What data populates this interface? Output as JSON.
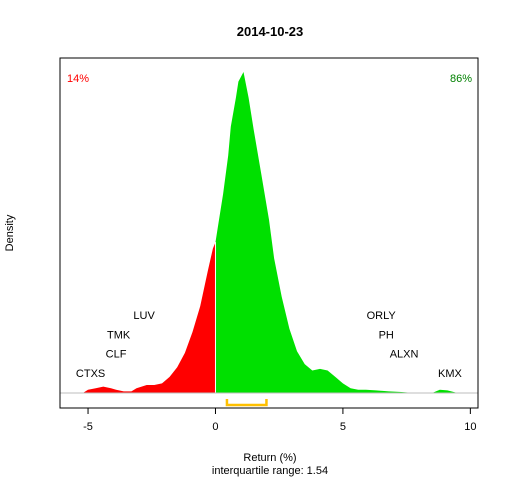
{
  "chart_data": {
    "type": "area",
    "title": "2014-10-23",
    "xlabel": "Return (%)",
    "ylabel": "Density",
    "subtitle": "interquartile range: 1.54",
    "xlim": [
      -6.1,
      10.3
    ],
    "ylim": [
      0,
      1.0
    ],
    "x_ticks": [
      -5,
      0,
      5,
      10
    ],
    "x_tick_labels": [
      "-5",
      "0",
      "5",
      "10"
    ],
    "grid": false,
    "pct_negative": "14%",
    "pct_positive": "86%",
    "colors": {
      "negative": "#ff0000",
      "positive": "#00e000",
      "iqr": "#ffc000",
      "pct_negative": "#ff0000",
      "pct_positive": "#008000",
      "baseline": "#bebebe"
    },
    "iqr": [
      0.45,
      2.0
    ],
    "density": {
      "x": [
        -5.2,
        -5.0,
        -4.7,
        -4.4,
        -4.1,
        -3.9,
        -3.6,
        -3.3,
        -3.1,
        -2.9,
        -2.7,
        -2.4,
        -2.1,
        -1.8,
        -1.5,
        -1.2,
        -0.9,
        -0.6,
        -0.3,
        -0.1,
        0.0,
        0.1,
        0.3,
        0.5,
        0.6,
        0.8,
        0.9,
        1.1,
        1.3,
        1.5,
        1.8,
        2.1,
        2.3,
        2.6,
        2.9,
        3.2,
        3.5,
        3.8,
        4.1,
        4.4,
        4.7,
        5.0,
        5.3,
        5.6,
        5.9,
        6.3,
        6.8,
        7.3,
        7.8,
        8.5,
        8.8,
        9.1,
        9.5,
        10.0
      ],
      "y": [
        0.0,
        0.01,
        0.015,
        0.02,
        0.015,
        0.01,
        0.005,
        0.005,
        0.015,
        0.02,
        0.025,
        0.025,
        0.03,
        0.05,
        0.08,
        0.125,
        0.19,
        0.27,
        0.38,
        0.45,
        0.47,
        0.52,
        0.62,
        0.74,
        0.83,
        0.92,
        0.97,
        1.0,
        0.92,
        0.82,
        0.68,
        0.54,
        0.42,
        0.3,
        0.2,
        0.13,
        0.09,
        0.07,
        0.075,
        0.07,
        0.05,
        0.03,
        0.015,
        0.01,
        0.01,
        0.008,
        0.005,
        0.003,
        0.0,
        0.0,
        0.01,
        0.008,
        0.0,
        0.0
      ]
    },
    "annotations": [
      {
        "label": "CTXS",
        "x": -4.9,
        "y": 0.05
      },
      {
        "label": "CLF",
        "x": -3.9,
        "y": 0.11
      },
      {
        "label": "TMK",
        "x": -3.8,
        "y": 0.17
      },
      {
        "label": "LUV",
        "x": -2.8,
        "y": 0.23
      },
      {
        "label": "ORLY",
        "x": 6.5,
        "y": 0.23
      },
      {
        "label": "PH",
        "x": 6.7,
        "y": 0.17
      },
      {
        "label": "ALXN",
        "x": 7.4,
        "y": 0.11
      },
      {
        "label": "KMX",
        "x": 9.2,
        "y": 0.05
      }
    ]
  }
}
